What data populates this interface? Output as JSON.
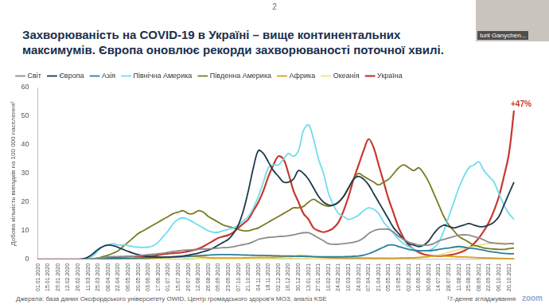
{
  "slide": {
    "page": "2",
    "presenter": "Iurii Ganychen...",
    "app": "zoom"
  },
  "chart_data": {
    "type": "line",
    "title": [
      "Захворюваність на COVID-19 в Україні – вище континентальних",
      "максимумів. Європа оновлює рекорди захворюваності поточної хвилі."
    ],
    "y_label": "Добова кількість випадків на 100 000 населення¹",
    "source": "Джерела: база даних Оксфордського університету OWID, Центр громадського здоров'я МОЗ, аналіз KSE",
    "footnote": "¹7-денне згладжування",
    "annotations": [
      {
        "text": "+47%",
        "series": "Україна"
      }
    ],
    "legend": "top",
    "grid": false,
    "ylim": [
      0,
      60
    ],
    "yticks": [
      0,
      10,
      20,
      30,
      40,
      50,
      60
    ],
    "categories": [
      "01.01.2020",
      null,
      "15.01.2020",
      null,
      "29.01.2020",
      null,
      "12.02.2020",
      null,
      "26.02.2020",
      null,
      "11.03.2020",
      null,
      "25.03.2020",
      null,
      "08.04.2020",
      null,
      "22.04.2020",
      null,
      "06.05.2020",
      null,
      "20.05.2020",
      null,
      "03.06.2020",
      null,
      "17.06.2020",
      null,
      "01.07.2020",
      null,
      "15.07.2020",
      null,
      "29.07.2020",
      null,
      "12.08.2020",
      null,
      "26.08.2020",
      null,
      "09.09.2020",
      null,
      "23.09.2020",
      null,
      "07.10.2020",
      null,
      "21.10.2020",
      null,
      "04.11.2020",
      null,
      "18.11.2020",
      null,
      "02.12.2020",
      null,
      "16.12.2020",
      null,
      "30.12.2020",
      null,
      "13.01.2021",
      null,
      "27.01.2021",
      null,
      "10.02.2021",
      null,
      "24.02.2021",
      null,
      "10.03.2021",
      null,
      "24.03.2021",
      null,
      "07.04.2021",
      null,
      "21.04.2021",
      null,
      "05.05.2021",
      null,
      "19.05.2021",
      null,
      "02.06.2021",
      null,
      "16.06.2021",
      null,
      "30.06.2021",
      null,
      "14.07.2021",
      null,
      "28.07.2021",
      null,
      "11.08.2021",
      null,
      "25.08.2021",
      null,
      "08.09.2021",
      null,
      "22.09.2021",
      null,
      "06.10.2021",
      null,
      "20.10.2021",
      null
    ],
    "series": [
      {
        "name": "Світ",
        "color": "#8c8c8c",
        "values": [
          0,
          0,
          0,
          0,
          0,
          0,
          0,
          0,
          0,
          0.05,
          0.1,
          0.2,
          0.3,
          0.6,
          0.9,
          1,
          1,
          1,
          1.1,
          1.1,
          1.3,
          1.5,
          1.7,
          1.8,
          2,
          2.2,
          2.5,
          2.8,
          3,
          3.2,
          3.3,
          3.4,
          3.5,
          3.6,
          3.7,
          3.8,
          4,
          4.1,
          4.2,
          4.4,
          4.8,
          5.2,
          5.5,
          6.2,
          7,
          7.4,
          7.7,
          7.8,
          8,
          8.1,
          8.3,
          8.6,
          9,
          9.3,
          9.3,
          8.5,
          7.5,
          6.5,
          5.5,
          5.3,
          5.3,
          5.5,
          5.7,
          6,
          6.5,
          7.5,
          9,
          10,
          10.5,
          10.6,
          10.5,
          9.5,
          8,
          7,
          6,
          5.5,
          5,
          5,
          5,
          5.5,
          6.5,
          7,
          7.5,
          8,
          8.5,
          8.6,
          8.5,
          8,
          7.5,
          6.8,
          6,
          5.7,
          5.5,
          5.4,
          5.5,
          5.6
        ]
      },
      {
        "name": "Європа",
        "color": "#1c3a4a",
        "values": [
          0,
          0,
          0,
          0,
          0,
          0,
          0,
          0,
          0,
          0.2,
          0.8,
          2,
          3.5,
          4.5,
          5,
          4.8,
          4.2,
          3.5,
          2.8,
          2.2,
          1.7,
          1.3,
          1,
          0.9,
          0.8,
          0.8,
          0.8,
          0.9,
          1,
          1.2,
          1.5,
          1.8,
          2.2,
          2.7,
          3.2,
          4,
          5,
          6,
          7,
          9,
          12,
          17,
          24,
          32,
          38,
          37,
          34,
          31,
          29,
          27,
          27,
          28,
          31,
          30,
          28,
          25,
          22,
          20,
          19,
          19,
          20,
          22,
          25,
          28,
          29,
          28,
          26,
          23,
          20,
          17,
          14,
          11,
          9,
          7,
          5.5,
          5,
          4.5,
          5,
          6.5,
          9,
          11,
          12,
          11.5,
          11,
          11.5,
          12,
          12.5,
          12,
          11.5,
          11.5,
          12,
          13,
          15,
          19,
          23,
          27
        ]
      },
      {
        "name": "Азія",
        "color": "#2a7f9e",
        "values": [
          0,
          0,
          0,
          0,
          0,
          0,
          0,
          0,
          0,
          0,
          0.05,
          0.1,
          0.15,
          0.2,
          0.3,
          0.3,
          0.3,
          0.35,
          0.4,
          0.45,
          0.5,
          0.55,
          0.6,
          0.65,
          0.7,
          0.8,
          0.85,
          0.9,
          0.95,
          1,
          1.1,
          1.2,
          1.3,
          1.4,
          1.5,
          1.6,
          1.7,
          1.7,
          1.7,
          1.65,
          1.6,
          1.55,
          1.5,
          1.45,
          1.4,
          1.4,
          1.35,
          1.3,
          1.25,
          1.2,
          1.2,
          1.15,
          1.1,
          1.05,
          1,
          0.95,
          0.9,
          0.9,
          0.9,
          0.9,
          0.9,
          0.95,
          1,
          1.1,
          1.2,
          1.5,
          2,
          2.7,
          3.5,
          4.3,
          5,
          5,
          4.5,
          4,
          3.5,
          3.2,
          3,
          3,
          3,
          3.2,
          3.5,
          3.8,
          4,
          4.3,
          4.5,
          4.3,
          4,
          3.8,
          3.5,
          3.2,
          2.8,
          2.6,
          2.3,
          2.1,
          2,
          2
        ]
      },
      {
        "name": "Північна Америка",
        "color": "#6fdcef",
        "values": [
          0,
          0,
          0,
          0,
          0,
          0,
          0,
          0,
          0,
          0.05,
          0.3,
          1.2,
          3,
          4.5,
          5,
          5.5,
          5,
          5,
          4.8,
          4.5,
          4.3,
          4.2,
          4.3,
          4.8,
          6,
          8,
          10,
          12.5,
          14,
          14.5,
          14,
          13,
          12,
          11,
          10,
          9.5,
          9.5,
          10,
          10.5,
          11,
          12,
          13.5,
          15,
          18,
          22,
          27,
          32,
          33,
          33,
          35,
          37,
          36,
          38,
          45,
          47,
          42,
          35,
          30,
          23,
          19,
          16,
          15,
          14,
          14.5,
          15.5,
          17,
          18,
          17.5,
          16,
          13,
          11,
          9,
          7,
          5.5,
          4.5,
          3.5,
          3,
          3,
          3.2,
          4,
          6,
          10,
          15,
          20,
          25,
          29,
          32,
          33,
          34,
          31,
          29,
          27,
          23,
          19,
          16,
          14
        ]
      },
      {
        "name": "Південна Америка",
        "color": "#7b7a22",
        "values": [
          0,
          0,
          0,
          0,
          0,
          0,
          0,
          0,
          0,
          0,
          0.1,
          0.2,
          0.5,
          1,
          1.5,
          2.2,
          3,
          4.5,
          6,
          7.5,
          9,
          10,
          11,
          12,
          13,
          14,
          15,
          16,
          16.5,
          17,
          16,
          16,
          17,
          16.5,
          15,
          14,
          13,
          12,
          11.5,
          11,
          10.5,
          10,
          10,
          10.5,
          11,
          12,
          13,
          14,
          15,
          16,
          17,
          18,
          18,
          18.5,
          20,
          21,
          20,
          19,
          18.5,
          19,
          20,
          22,
          25,
          28,
          30,
          29,
          28,
          27,
          26,
          27,
          28,
          30,
          32,
          33,
          32,
          31,
          32,
          30,
          27,
          23,
          19,
          15,
          12,
          10,
          8,
          7,
          6,
          5,
          4.5,
          4,
          3.8,
          3.6,
          3.5,
          3.5,
          3.8,
          4
        ]
      },
      {
        "name": "Африка",
        "color": "#d9a21b",
        "values": [
          0,
          0,
          0,
          0,
          0,
          0,
          0,
          0,
          0,
          0,
          0,
          0,
          0.02,
          0.03,
          0.05,
          0.06,
          0.08,
          0.1,
          0.12,
          0.15,
          0.2,
          0.25,
          0.3,
          0.4,
          0.5,
          0.6,
          0.7,
          0.85,
          1,
          1.1,
          1.2,
          1.1,
          0.9,
          0.75,
          0.6,
          0.55,
          0.5,
          0.5,
          0.5,
          0.5,
          0.5,
          0.55,
          0.6,
          0.65,
          0.7,
          0.7,
          0.7,
          0.75,
          0.85,
          0.95,
          1,
          1.1,
          1.3,
          1.25,
          1.2,
          1,
          0.9,
          0.75,
          0.6,
          0.55,
          0.5,
          0.5,
          0.5,
          0.5,
          0.5,
          0.45,
          0.45,
          0.4,
          0.4,
          0.4,
          0.4,
          0.4,
          0.45,
          0.5,
          0.55,
          0.6,
          0.7,
          0.85,
          1,
          1.2,
          1.3,
          1.25,
          1.1,
          1,
          0.9,
          0.85,
          0.8,
          0.7,
          0.6,
          0.55,
          0.5,
          0.45,
          0.4,
          0.35,
          0.3,
          0.3
        ]
      },
      {
        "name": "Океанія",
        "color": "#efe38a",
        "values": [
          0,
          0,
          0,
          0,
          0,
          0,
          0,
          0,
          0,
          0,
          0.05,
          0.2,
          0.5,
          0.4,
          0.2,
          0.1,
          0.05,
          0.05,
          0.05,
          0.05,
          0.05,
          0.05,
          0.05,
          0.1,
          0.2,
          0.35,
          0.5,
          0.7,
          0.8,
          0.7,
          0.5,
          0.35,
          0.2,
          0.15,
          0.1,
          0.1,
          0.1,
          0.1,
          0.15,
          0.2,
          0.2,
          0.2,
          0.2,
          0.25,
          0.3,
          0.3,
          0.3,
          0.35,
          0.4,
          0.4,
          0.4,
          0.4,
          0.35,
          0.3,
          0.3,
          0.25,
          0.25,
          0.3,
          0.35,
          0.4,
          0.45,
          0.5,
          0.5,
          0.55,
          0.6,
          0.6,
          0.6,
          0.6,
          0.6,
          0.55,
          0.5,
          0.5,
          0.5,
          0.5,
          0.5,
          0.5,
          0.6,
          0.8,
          1,
          1.2,
          1.5,
          2,
          2.5,
          3,
          3.5,
          3.8,
          4.2,
          4.5,
          5,
          5.3,
          5.5,
          5.7,
          5.8,
          5.7,
          5.5,
          5.3
        ]
      },
      {
        "name": "Україна",
        "color": "#c8372d",
        "values": [
          0,
          0,
          0,
          0,
          0,
          0,
          0,
          0,
          0,
          0,
          0,
          0.02,
          0.1,
          0.3,
          0.5,
          0.7,
          0.8,
          0.9,
          1,
          1.1,
          1.1,
          1.1,
          1.2,
          1.3,
          1.5,
          1.8,
          2,
          2.2,
          2.3,
          2.5,
          2.8,
          3.2,
          3.7,
          4.5,
          5.5,
          6.5,
          7.5,
          8,
          8.5,
          9.5,
          11,
          12.5,
          14,
          17,
          20,
          24,
          29,
          33,
          36,
          35,
          30,
          24,
          20,
          16,
          14,
          11,
          10,
          9.5,
          10,
          11,
          13,
          17,
          22,
          28,
          33,
          38,
          42,
          39,
          33,
          27,
          21,
          16,
          11,
          7.5,
          5,
          3.5,
          2.5,
          1.8,
          1.4,
          1.2,
          1.2,
          1.3,
          1.5,
          1.8,
          2.3,
          3,
          4,
          5.5,
          7.5,
          10,
          13,
          17,
          22,
          29,
          37,
          52
        ]
      }
    ]
  }
}
